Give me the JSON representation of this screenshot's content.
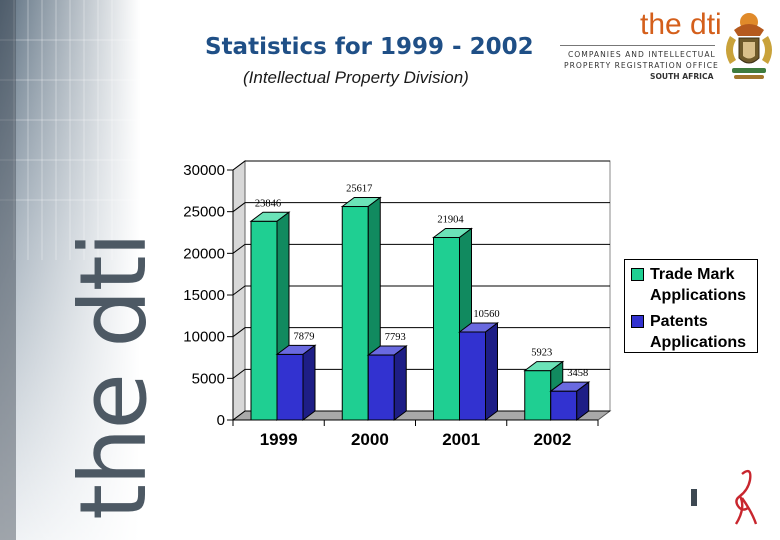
{
  "slide": {
    "title": "Statistics for 1999 - 2002",
    "subtitle": "(Intellectual Property Division)",
    "side_wordmark": "the dti"
  },
  "logo": {
    "wordmark": "the dti",
    "line1": "COMPANIES AND INTELLECTUAL",
    "line2": "PROPERTY REGISTRATION OFFICE",
    "line3": "SOUTH AFRICA",
    "crest_icon": "coat-of-arms-icon"
  },
  "colors": {
    "title": "#1f4f86",
    "trade_mark": "#1fcf92",
    "patents": "#3232d0",
    "brand_orange": "#d45f1b",
    "brand_red": "#c8262e"
  },
  "chart_data": {
    "type": "bar",
    "categories": [
      "1999",
      "2000",
      "2001",
      "2002"
    ],
    "series": [
      {
        "name": "Trade Mark Applications",
        "values": [
          23846,
          25617,
          21904,
          5923
        ],
        "labels": [
          "23846",
          "25617",
          "21904",
          "5923"
        ]
      },
      {
        "name": "Patents Applications",
        "values": [
          7879,
          7793,
          10560,
          3458
        ],
        "labels": [
          "7879",
          "7793",
          "10560",
          "3458"
        ]
      }
    ],
    "ylim": [
      0,
      30000
    ],
    "yticks": [
      "30000",
      "25000",
      "20000",
      "15000",
      "10000",
      "5000",
      "0"
    ],
    "grid": true,
    "legend": "right",
    "style": "3d"
  }
}
